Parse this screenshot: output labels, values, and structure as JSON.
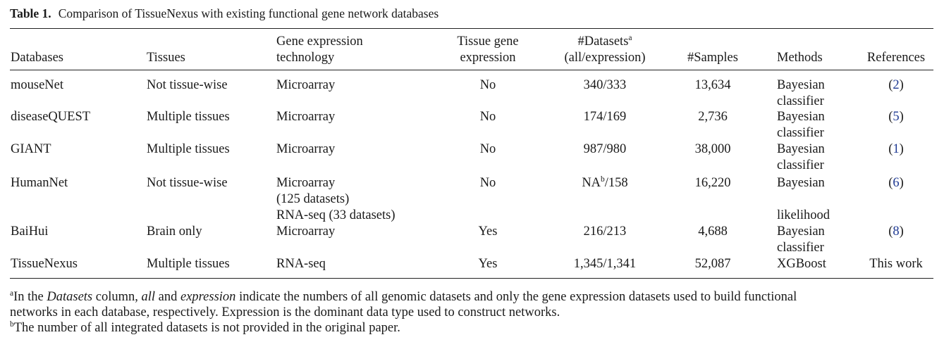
{
  "table": {
    "label": "Table 1.",
    "caption": "Comparison of TissueNexus with existing functional gene network databases",
    "headers": {
      "databases": "Databases",
      "tissues": "Tissues",
      "tech_l1": "Gene expression",
      "tech_l2": "technology",
      "tge_l1": "Tissue gene",
      "tge_l2": "expression",
      "ds_l1": "#Datasets",
      "ds_sup": "a",
      "ds_l2": "(all/expression)",
      "samples": "#Samples",
      "methods": "Methods",
      "references": "References"
    },
    "rows": [
      {
        "database": "mouseNet",
        "tissues": "Not tissue-wise",
        "tech": "Microarray",
        "tissue_expr": "No",
        "datasets": "340/333",
        "samples": "13,634",
        "method_l1": "Bayesian",
        "method_l2": "classifier",
        "ref_open": "(",
        "ref": "2",
        "ref_close": ")"
      },
      {
        "database": "diseaseQUEST",
        "tissues": "Multiple tissues",
        "tech": "Microarray",
        "tissue_expr": "No",
        "datasets": "174/169",
        "samples": "2,736",
        "method_l1": "Bayesian",
        "method_l2": "classifier",
        "ref_open": "(",
        "ref": "5",
        "ref_close": ")"
      },
      {
        "database": "GIANT",
        "tissues": "Multiple tissues",
        "tech": "Microarray",
        "tissue_expr": "No",
        "datasets": "987/980",
        "samples": "38,000",
        "method_l1": "Bayesian",
        "method_l2": "classifier",
        "ref_open": "(",
        "ref": "1",
        "ref_close": ")"
      },
      {
        "database": "HumanNet",
        "tissues": "Not tissue-wise",
        "tech_l1": "Microarray",
        "tech_l2": "(125 datasets)",
        "tech_l3": "RNA-seq (33 datasets)",
        "tissue_expr": "No",
        "datasets_pre": "NA",
        "datasets_sup": "b",
        "datasets_post": "/158",
        "samples": "16,220",
        "method_l1": "Bayesian",
        "method_l3": "likelihood",
        "ref_open": "(",
        "ref": "6",
        "ref_close": ")"
      },
      {
        "database": "BaiHui",
        "tissues": "Brain only",
        "tech": "Microarray",
        "tissue_expr": "Yes",
        "datasets": "216/213",
        "samples": "4,688",
        "method_l1": "Bayesian",
        "method_l2": "classifier",
        "ref_open": "(",
        "ref": "8",
        "ref_close": ")"
      },
      {
        "database": "TissueNexus",
        "tissues": "Multiple tissues",
        "tech": "RNA-seq",
        "tissue_expr": "Yes",
        "datasets": "1,345/1,341",
        "samples": "52,087",
        "method_l1": "XGBoost",
        "ref_text": "This work"
      }
    ]
  },
  "footnotes": {
    "a_mark": "a",
    "a_t1": "In the ",
    "a_i1": "Datasets",
    "a_t2": " column, ",
    "a_i2": "all",
    "a_t3": " and ",
    "a_i3": "expression",
    "a_t4": " indicate the numbers of all genomic datasets and only the gene expression datasets used to build functional",
    "a_line2": "networks in each database, respectively. Expression is the dominant data type used to construct networks.",
    "b_mark": "b",
    "b_text": "The number of all integrated datasets is not provided in the original paper."
  }
}
